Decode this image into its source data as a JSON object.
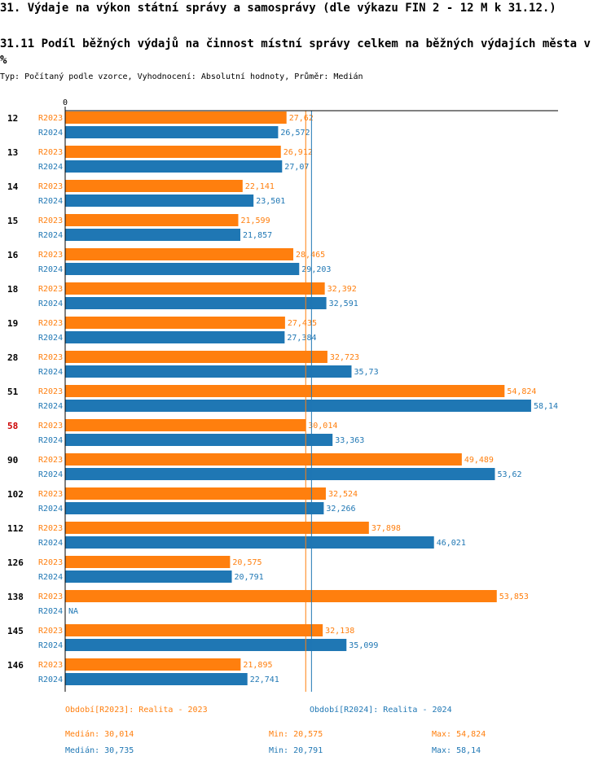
{
  "page": {
    "title": "31. Výdaje na výkon státní správy a samosprávy (dle výkazu FIN 2 - 12 M k 31.12.)",
    "subtitle": "31.11 Podíl běžných výdajů na činnost místní správy celkem na běžných výdajích města v %",
    "type_line": "Typ: Počítaný podle vzorce, Vyhodnocení: Absolutní hodnoty, Průměr: Medián"
  },
  "colors": {
    "r2023": "#ff7f0e",
    "r2024": "#1f77b4",
    "highlight": "#cc0000"
  },
  "chart_data": {
    "type": "bar",
    "orientation": "horizontal",
    "axis_zero_label": "0",
    "xlim": [
      0,
      61.5
    ],
    "highlight_category": "58",
    "categories": [
      "12",
      "13",
      "14",
      "15",
      "16",
      "18",
      "19",
      "28",
      "51",
      "58",
      "90",
      "102",
      "112",
      "126",
      "138",
      "145",
      "146"
    ],
    "series": [
      {
        "name": "R2023",
        "values": [
          27.62,
          26.912,
          22.141,
          21.599,
          28.465,
          32.392,
          27.435,
          32.723,
          54.824,
          30.014,
          49.489,
          32.524,
          37.898,
          20.575,
          53.853,
          32.138,
          21.895
        ],
        "labels": [
          "27,62",
          "26,912",
          "22,141",
          "21,599",
          "28,465",
          "32,392",
          "27,435",
          "32,723",
          "54,824",
          "30,014",
          "49,489",
          "32,524",
          "37,898",
          "20,575",
          "53,853",
          "32,138",
          "21,895"
        ]
      },
      {
        "name": "R2024",
        "values": [
          26.572,
          27.07,
          23.501,
          21.857,
          29.203,
          32.591,
          27.384,
          35.73,
          58.14,
          33.363,
          53.62,
          32.266,
          46.021,
          20.791,
          null,
          35.099,
          22.741
        ],
        "labels": [
          "26,572",
          "27,07",
          "23,501",
          "21,857",
          "29,203",
          "32,591",
          "27,384",
          "35,73",
          "58,14",
          "33,363",
          "53,62",
          "32,266",
          "46,021",
          "20,791",
          "NA",
          "35,099",
          "22,741"
        ]
      }
    ],
    "medians": [
      30.014,
      30.735
    ]
  },
  "legend": {
    "r2023": "Období[R2023]: Realita - 2023",
    "r2024": "Období[R2024]: Realita - 2024"
  },
  "stats": {
    "r2023": {
      "median": "Medián: 30,014",
      "min": "Min: 20,575",
      "max": "Max: 54,824"
    },
    "r2024": {
      "median": "Medián: 30,735",
      "min": "Min: 20,791",
      "max": "Max: 58,14"
    }
  }
}
